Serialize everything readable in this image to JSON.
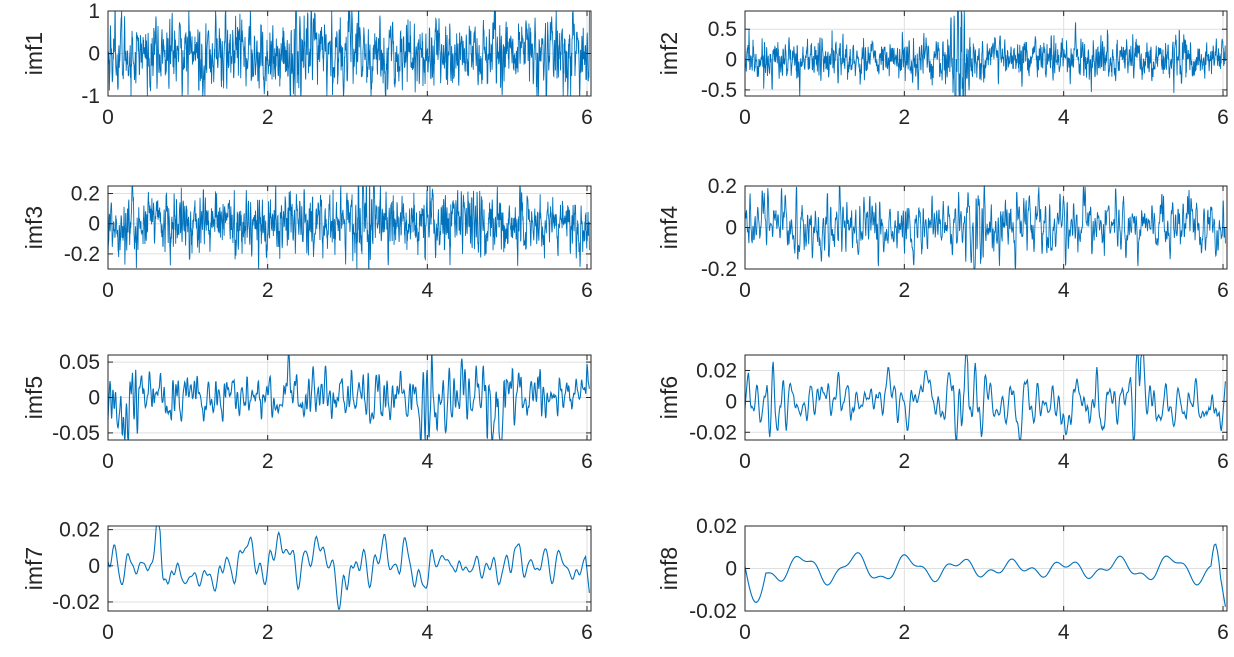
{
  "colors": {
    "line": "#0072BD",
    "axis": "#262626",
    "grid": "#DFDFDF",
    "background": "#FFFFFF"
  },
  "chart_data": [
    {
      "type": "line",
      "ylabel": "imf1",
      "xlabel": "",
      "title": "",
      "xlim": [
        0,
        6.05
      ],
      "ylim": [
        -1,
        1
      ],
      "xticks": [
        0,
        2,
        4,
        6
      ],
      "xtick_labels": [
        "0",
        "2",
        "4",
        "6"
      ],
      "yticks": [
        -1,
        0,
        1
      ],
      "ytick_labels": [
        "-1",
        "0",
        "1"
      ],
      "grid": true,
      "samples": 1800,
      "signal": "dense noise, typical amplitude ±0.5, bursts to ±0.9 near x=2.4 and x=3.1",
      "amplitude": 0.42,
      "smooth": 1
    },
    {
      "type": "line",
      "ylabel": "imf2",
      "xlabel": "",
      "title": "",
      "xlim": [
        0,
        6.05
      ],
      "ylim": [
        -0.6,
        0.8
      ],
      "xticks": [
        0,
        2,
        4,
        6
      ],
      "xtick_labels": [
        "0",
        "2",
        "4",
        "6"
      ],
      "yticks": [
        -0.5,
        0,
        0.5
      ],
      "ytick_labels": [
        "-0.5",
        "0",
        "0.5"
      ],
      "grid": true,
      "samples": 1800,
      "signal": "dense noise ±0.2, burst to 0.8 / -0.6 near x=2.7",
      "amplitude": 0.17,
      "smooth": 1
    },
    {
      "type": "line",
      "ylabel": "imf3",
      "xlabel": "",
      "title": "",
      "xlim": [
        0,
        6.05
      ],
      "ylim": [
        -0.3,
        0.25
      ],
      "xticks": [
        0,
        2,
        4,
        6
      ],
      "xtick_labels": [
        "0",
        "2",
        "4",
        "6"
      ],
      "yticks": [
        -0.2,
        0,
        0.2
      ],
      "ytick_labels": [
        "-0.2",
        "0",
        "0.2"
      ],
      "grid": true,
      "samples": 1800,
      "signal": "dense noise ±0.15, peaks ±0.25 near x=3.2",
      "amplitude": 0.1,
      "smooth": 1
    },
    {
      "type": "line",
      "ylabel": "imf4",
      "xlabel": "",
      "title": "",
      "xlim": [
        0,
        6.05
      ],
      "ylim": [
        -0.2,
        0.2
      ],
      "xticks": [
        0,
        2,
        4,
        6
      ],
      "xtick_labels": [
        "0",
        "2",
        "4",
        "6"
      ],
      "yticks": [
        -0.2,
        0,
        0.2
      ],
      "ytick_labels": [
        "-0.2",
        "0",
        "0.2"
      ],
      "grid": true,
      "samples": 1600,
      "signal": "dense noise ±0.1, peak 0.15 near x=3",
      "amplitude": 0.07,
      "smooth": 2
    },
    {
      "type": "line",
      "ylabel": "imf5",
      "xlabel": "",
      "title": "",
      "xlim": [
        0,
        6.05
      ],
      "ylim": [
        -0.06,
        0.06
      ],
      "xticks": [
        0,
        2,
        4,
        6
      ],
      "xtick_labels": [
        "0",
        "2",
        "4",
        "6"
      ],
      "yticks": [
        -0.05,
        0,
        0.05
      ],
      "ytick_labels": [
        "-0.05",
        "0",
        "0.05"
      ],
      "grid": true,
      "samples": 1200,
      "signal": "oscillation ±0.025, bursts to ±0.06 near x=0.3, 4.0, 4.9",
      "amplitude": 0.018,
      "smooth": 3
    },
    {
      "type": "line",
      "ylabel": "imf6",
      "xlabel": "",
      "title": "",
      "xlim": [
        0,
        6.05
      ],
      "ylim": [
        -0.025,
        0.03
      ],
      "xticks": [
        0,
        2,
        4,
        6
      ],
      "xtick_labels": [
        "0",
        "2",
        "4",
        "6"
      ],
      "yticks": [
        -0.02,
        0,
        0.02
      ],
      "ytick_labels": [
        "-0.02",
        "0",
        "0.02"
      ],
      "grid": true,
      "samples": 700,
      "signal": "oscillation ±0.01, peaks to 0.03 near x=4.9",
      "amplitude": 0.009,
      "smooth": 3
    },
    {
      "type": "line",
      "ylabel": "imf7",
      "xlabel": "",
      "title": "",
      "xlim": [
        0,
        6.05
      ],
      "ylim": [
        -0.025,
        0.022
      ],
      "xticks": [
        0,
        2,
        4,
        6
      ],
      "xtick_labels": [
        "0",
        "2",
        "4",
        "6"
      ],
      "yticks": [
        -0.02,
        0,
        0.02
      ],
      "ytick_labels": [
        "-0.02",
        "0",
        "0.02"
      ],
      "grid": true,
      "samples": 500,
      "signal": "smooth oscillation ±0.01, peak 0.016 near x=0.65, drop to -0.025 at x=6",
      "amplitude": 0.007,
      "smooth": 6
    },
    {
      "type": "line",
      "ylabel": "imf8",
      "xlabel": "",
      "title": "",
      "xlim": [
        0,
        6.05
      ],
      "ylim": [
        -0.02,
        0.02
      ],
      "xticks": [
        0,
        2,
        4,
        6
      ],
      "xtick_labels": [
        "0",
        "2",
        "4",
        "6"
      ],
      "yticks": [
        -0.02,
        0,
        0.02
      ],
      "ytick_labels": [
        "-0.02",
        "0",
        "0.02"
      ],
      "grid": true,
      "samples": 300,
      "signal": "slow oscillation ±0.008, dips to -0.017 at both ends",
      "amplitude": 0.006,
      "smooth": 10
    }
  ]
}
